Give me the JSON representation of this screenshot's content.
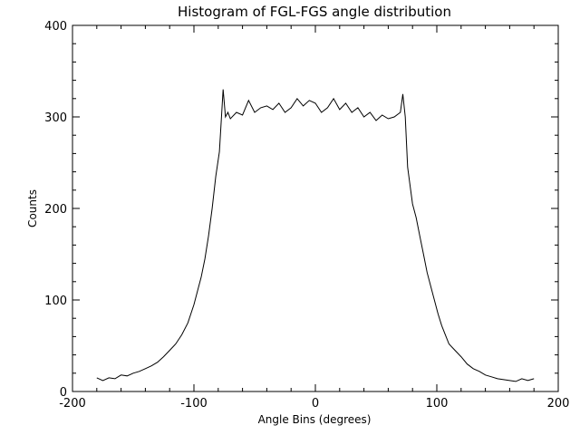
{
  "chart_data": {
    "type": "line",
    "title": "Histogram of FGL-FGS angle distribution",
    "xlabel": "Angle Bins (degrees)",
    "ylabel": "Counts",
    "xlim": [
      -200,
      200
    ],
    "ylim": [
      0,
      400
    ],
    "x_ticks": [
      "-200",
      "-100",
      "0",
      "100",
      "200"
    ],
    "y_ticks": [
      "0",
      "100",
      "200",
      "300",
      "400"
    ],
    "x_tick_values": [
      -200,
      -100,
      0,
      100,
      200
    ],
    "y_tick_values": [
      0,
      100,
      200,
      300,
      400
    ],
    "x_minor_step": 20,
    "y_minor_step": 20,
    "grid": false,
    "series": [
      {
        "x": [
          -180,
          -175,
          -170,
          -165,
          -160,
          -155,
          -150,
          -145,
          -140,
          -135,
          -130,
          -125,
          -120,
          -115,
          -110,
          -105,
          -100,
          -97,
          -94,
          -91,
          -88,
          -85,
          -82,
          -79,
          -76,
          -74,
          -72,
          -70,
          -65,
          -60,
          -55,
          -50,
          -45,
          -40,
          -35,
          -30,
          -25,
          -20,
          -15,
          -10,
          -5,
          0,
          5,
          10,
          15,
          20,
          25,
          30,
          35,
          40,
          45,
          50,
          55,
          60,
          65,
          70,
          72,
          74,
          76,
          78,
          80,
          83,
          86,
          89,
          92,
          95,
          98,
          101,
          104,
          107,
          110,
          115,
          120,
          125,
          130,
          135,
          140,
          145,
          150,
          155,
          160,
          165,
          170,
          175,
          180
        ],
        "values": [
          15,
          12,
          15,
          14,
          18,
          17,
          20,
          22,
          25,
          28,
          32,
          38,
          45,
          52,
          62,
          75,
          95,
          110,
          125,
          145,
          170,
          200,
          235,
          262,
          330,
          300,
          305,
          298,
          305,
          302,
          318,
          305,
          310,
          312,
          308,
          315,
          305,
          310,
          320,
          312,
          318,
          315,
          305,
          310,
          320,
          308,
          315,
          305,
          310,
          300,
          305,
          296,
          302,
          298,
          300,
          305,
          325,
          300,
          245,
          225,
          205,
          190,
          170,
          150,
          130,
          115,
          100,
          85,
          72,
          62,
          52,
          45,
          38,
          30,
          25,
          22,
          18,
          16,
          14,
          13,
          12,
          11,
          14,
          12,
          14
        ]
      }
    ]
  }
}
